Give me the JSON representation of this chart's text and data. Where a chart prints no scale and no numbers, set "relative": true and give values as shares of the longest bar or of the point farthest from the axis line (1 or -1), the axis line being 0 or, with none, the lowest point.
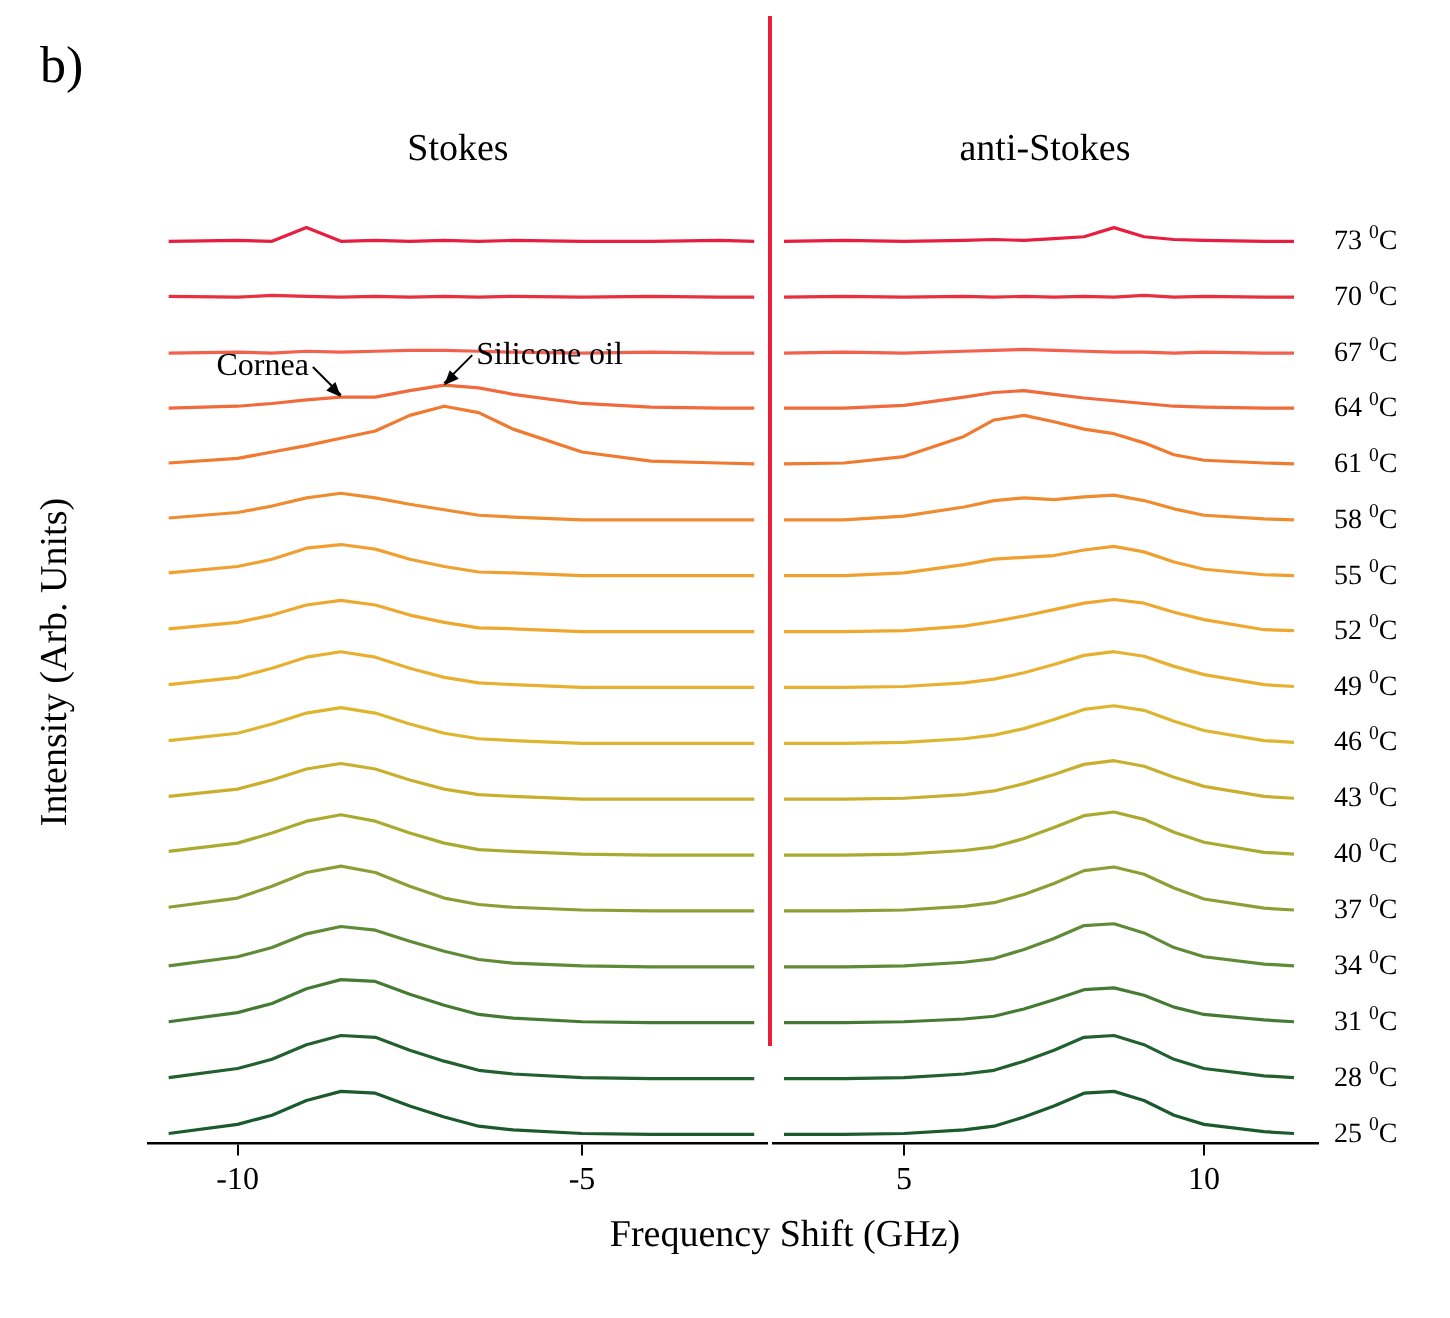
{
  "chart_data": [
    {
      "type": "line",
      "title": "b)",
      "xlabel": "Frequency Shift (GHz)",
      "ylabel": "Intensity (Arb. Units)",
      "relative": true,
      "tick_labels": "x",
      "grid": false,
      "legend": false,
      "marker": "none",
      "line_style": "solid",
      "xlim": [
        -11.3,
        -2.3
      ],
      "xticks": [
        -10,
        -5
      ],
      "annotations": [
        "Stokes",
        {
          "text": "Cornea",
          "x": -8.5,
          "y": 0.815
        },
        {
          "text": "Silicone oil",
          "x": -7,
          "y": 0.828
        }
      ],
      "x": [
        -11,
        -10,
        -9.5,
        -9,
        -8.5,
        -8,
        -7.5,
        -7,
        -6.5,
        -6,
        -5,
        -4,
        -3,
        -2.5
      ],
      "series": [
        {
          "color": "#1b5a2c",
          "values": [
            0.011,
            0.021,
            0.031,
            0.047,
            0.057,
            0.055,
            0.041,
            0.029,
            0.019,
            0.015,
            0.011,
            0.01,
            0.01,
            0.01
          ]
        },
        {
          "color": "#22602f",
          "values": [
            0.072,
            0.082,
            0.092,
            0.108,
            0.118,
            0.116,
            0.102,
            0.09,
            0.08,
            0.076,
            0.072,
            0.071,
            0.071,
            0.071
          ]
        },
        {
          "color": "#457a34",
          "values": [
            0.133,
            0.143,
            0.153,
            0.169,
            0.179,
            0.177,
            0.163,
            0.151,
            0.141,
            0.137,
            0.133,
            0.132,
            0.132,
            0.132
          ]
        },
        {
          "color": "#5f8a36",
          "values": [
            0.194,
            0.204,
            0.214,
            0.229,
            0.237,
            0.233,
            0.221,
            0.21,
            0.201,
            0.197,
            0.194,
            0.193,
            0.193,
            0.193
          ]
        },
        {
          "color": "#8c9e36",
          "values": [
            0.258,
            0.268,
            0.281,
            0.296,
            0.303,
            0.296,
            0.281,
            0.268,
            0.261,
            0.258,
            0.255,
            0.254,
            0.254,
            0.254
          ]
        },
        {
          "color": "#aaaa30",
          "values": [
            0.319,
            0.328,
            0.339,
            0.352,
            0.359,
            0.352,
            0.339,
            0.328,
            0.321,
            0.319,
            0.316,
            0.315,
            0.315,
            0.315
          ]
        },
        {
          "color": "#c8b02e",
          "values": [
            0.379,
            0.387,
            0.397,
            0.409,
            0.415,
            0.409,
            0.397,
            0.387,
            0.381,
            0.379,
            0.376,
            0.376,
            0.376,
            0.376
          ]
        },
        {
          "color": "#deb52e",
          "values": [
            0.44,
            0.448,
            0.458,
            0.47,
            0.476,
            0.47,
            0.458,
            0.448,
            0.442,
            0.44,
            0.437,
            0.437,
            0.437,
            0.437
          ]
        },
        {
          "color": "#e8b030",
          "values": [
            0.501,
            0.509,
            0.519,
            0.531,
            0.537,
            0.531,
            0.519,
            0.509,
            0.503,
            0.501,
            0.498,
            0.498,
            0.498,
            0.498
          ]
        },
        {
          "color": "#eea830",
          "values": [
            0.562,
            0.569,
            0.577,
            0.588,
            0.593,
            0.588,
            0.577,
            0.569,
            0.563,
            0.562,
            0.559,
            0.559,
            0.559,
            0.559
          ]
        },
        {
          "color": "#f0a030",
          "values": [
            0.623,
            0.63,
            0.638,
            0.65,
            0.654,
            0.649,
            0.638,
            0.63,
            0.624,
            0.623,
            0.62,
            0.62,
            0.62,
            0.62
          ]
        },
        {
          "color": "#f08c30",
          "values": [
            0.683,
            0.689,
            0.696,
            0.705,
            0.71,
            0.705,
            0.698,
            0.692,
            0.686,
            0.684,
            0.681,
            0.681,
            0.681,
            0.681
          ]
        },
        {
          "color": "#f07a30",
          "values": [
            0.743,
            0.748,
            0.755,
            0.762,
            0.77,
            0.778,
            0.795,
            0.805,
            0.798,
            0.78,
            0.755,
            0.745,
            0.743,
            0.742
          ]
        },
        {
          "color": "#f06a3c",
          "values": [
            0.803,
            0.805,
            0.808,
            0.812,
            0.815,
            0.815,
            0.822,
            0.828,
            0.825,
            0.818,
            0.808,
            0.804,
            0.803,
            0.803
          ]
        },
        {
          "color": "#f2604e",
          "values": [
            0.863,
            0.864,
            0.863,
            0.865,
            0.864,
            0.865,
            0.866,
            0.866,
            0.865,
            0.864,
            0.863,
            0.864,
            0.863,
            0.863
          ]
        },
        {
          "color": "#e8303e",
          "values": [
            0.925,
            0.924,
            0.926,
            0.925,
            0.924,
            0.925,
            0.924,
            0.925,
            0.924,
            0.925,
            0.924,
            0.925,
            0.924,
            0.924
          ]
        },
        {
          "color": "#e81e40",
          "values": [
            0.985,
            0.986,
            0.985,
            1.0,
            0.985,
            0.986,
            0.985,
            0.986,
            0.985,
            0.986,
            0.985,
            0.985,
            0.986,
            0.985
          ]
        }
      ]
    },
    {
      "type": "line",
      "relative": true,
      "tick_labels": "x",
      "grid": false,
      "legend": false,
      "marker": "none",
      "line_style": "solid",
      "xlim": [
        2.8,
        11.9
      ],
      "xticks": [
        5,
        10
      ],
      "annotations": [
        "anti-Stokes"
      ],
      "x": [
        3,
        4,
        5,
        6,
        6.5,
        7,
        7.5,
        8,
        8.5,
        9,
        9.5,
        10,
        11,
        11.5
      ],
      "series": [
        {
          "name": "25 $^{0}$C",
          "color": "#1b5a2c",
          "values": [
            0.01,
            0.01,
            0.011,
            0.015,
            0.019,
            0.029,
            0.041,
            0.055,
            0.057,
            0.047,
            0.031,
            0.021,
            0.013,
            0.011
          ]
        },
        {
          "name": "28 $^{0}$C",
          "color": "#22602f",
          "values": [
            0.071,
            0.071,
            0.072,
            0.076,
            0.08,
            0.09,
            0.102,
            0.116,
            0.118,
            0.108,
            0.092,
            0.082,
            0.074,
            0.072
          ]
        },
        {
          "name": "31 $^{0}$C",
          "color": "#457a34",
          "values": [
            0.132,
            0.132,
            0.133,
            0.136,
            0.139,
            0.147,
            0.157,
            0.168,
            0.17,
            0.162,
            0.149,
            0.141,
            0.135,
            0.133
          ]
        },
        {
          "name": "34 $^{0}$C",
          "color": "#5f8a36",
          "values": [
            0.193,
            0.193,
            0.194,
            0.198,
            0.202,
            0.212,
            0.224,
            0.238,
            0.24,
            0.23,
            0.214,
            0.204,
            0.196,
            0.194
          ]
        },
        {
          "name": "37 $^{0}$C",
          "color": "#8c9e36",
          "values": [
            0.254,
            0.254,
            0.255,
            0.259,
            0.263,
            0.272,
            0.284,
            0.298,
            0.302,
            0.294,
            0.279,
            0.267,
            0.257,
            0.255
          ]
        },
        {
          "name": "40 $^{0}$C",
          "color": "#aaaa30",
          "values": [
            0.315,
            0.315,
            0.316,
            0.32,
            0.324,
            0.333,
            0.345,
            0.358,
            0.362,
            0.354,
            0.34,
            0.329,
            0.318,
            0.316
          ]
        },
        {
          "name": "43 $^{0}$C",
          "color": "#c8b02e",
          "values": [
            0.376,
            0.376,
            0.377,
            0.381,
            0.385,
            0.393,
            0.403,
            0.414,
            0.418,
            0.412,
            0.4,
            0.39,
            0.379,
            0.377
          ]
        },
        {
          "name": "46 $^{0}$C",
          "color": "#deb52e",
          "values": [
            0.437,
            0.437,
            0.438,
            0.442,
            0.446,
            0.453,
            0.463,
            0.474,
            0.478,
            0.473,
            0.461,
            0.451,
            0.44,
            0.438
          ]
        },
        {
          "name": "49 $^{0}$C",
          "color": "#e8b030",
          "values": [
            0.498,
            0.498,
            0.499,
            0.503,
            0.507,
            0.514,
            0.523,
            0.533,
            0.537,
            0.532,
            0.521,
            0.512,
            0.501,
            0.499
          ]
        },
        {
          "name": "52 $^{0}$C",
          "color": "#eea830",
          "values": [
            0.559,
            0.559,
            0.56,
            0.565,
            0.57,
            0.576,
            0.583,
            0.59,
            0.594,
            0.59,
            0.58,
            0.572,
            0.561,
            0.56
          ]
        },
        {
          "name": "55 $^{0}$C",
          "color": "#f0a030",
          "values": [
            0.62,
            0.62,
            0.623,
            0.632,
            0.638,
            0.64,
            0.642,
            0.648,
            0.652,
            0.646,
            0.635,
            0.627,
            0.621,
            0.62
          ]
        },
        {
          "name": "58 $^{0}$C",
          "color": "#f08c30",
          "values": [
            0.681,
            0.681,
            0.685,
            0.695,
            0.702,
            0.705,
            0.703,
            0.706,
            0.708,
            0.702,
            0.693,
            0.686,
            0.682,
            0.681
          ]
        },
        {
          "name": "61 $^{0}$C",
          "color": "#f07a30",
          "values": [
            0.742,
            0.743,
            0.75,
            0.772,
            0.79,
            0.795,
            0.788,
            0.78,
            0.775,
            0.765,
            0.752,
            0.746,
            0.743,
            0.742
          ]
        },
        {
          "name": "64 $^{0}$C",
          "color": "#f06a3c",
          "values": [
            0.803,
            0.803,
            0.806,
            0.815,
            0.82,
            0.822,
            0.818,
            0.814,
            0.811,
            0.808,
            0.805,
            0.804,
            0.803,
            0.803
          ]
        },
        {
          "name": "67 $^{0}$C",
          "color": "#f2604e",
          "values": [
            0.863,
            0.864,
            0.863,
            0.865,
            0.866,
            0.867,
            0.866,
            0.865,
            0.864,
            0.864,
            0.863,
            0.864,
            0.863,
            0.863
          ]
        },
        {
          "name": "70 $^{0}$C",
          "color": "#e8303e",
          "values": [
            0.924,
            0.925,
            0.924,
            0.925,
            0.924,
            0.925,
            0.924,
            0.925,
            0.924,
            0.926,
            0.924,
            0.925,
            0.924,
            0.924
          ]
        },
        {
          "name": "73 $^{0}$C",
          "color": "#e81e40",
          "values": [
            0.985,
            0.986,
            0.985,
            0.986,
            0.987,
            0.986,
            0.988,
            0.99,
            1.0,
            0.99,
            0.987,
            0.986,
            0.985,
            0.985
          ]
        }
      ]
    }
  ]
}
